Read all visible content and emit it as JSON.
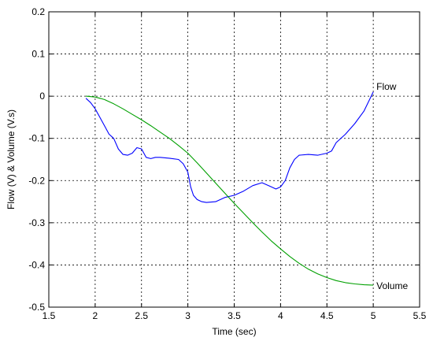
{
  "chart_data": {
    "type": "line",
    "xlabel": "Time (sec)",
    "ylabel": "Flow (V) & Volume (V.s)",
    "xlim": [
      1.5,
      5.5
    ],
    "ylim": [
      -0.5,
      0.2
    ],
    "xticks": [
      1.5,
      2,
      2.5,
      3,
      3.5,
      4,
      4.5,
      5,
      5.5
    ],
    "xtick_labels": [
      "1.5",
      "2",
      "2.5",
      "3",
      "3.5",
      "4",
      "4.5",
      "5",
      "5.5"
    ],
    "yticks": [
      -0.5,
      -0.4,
      -0.3,
      -0.2,
      -0.1,
      0,
      0.1,
      0.2
    ],
    "ytick_labels": [
      "-0.5",
      "-0.4",
      "-0.3",
      "-0.2",
      "-0.1",
      "0",
      "0.1",
      "0.2"
    ],
    "grid": true,
    "series": [
      {
        "name": "Flow",
        "color": "#0000ff",
        "x": [
          1.9,
          1.95,
          2.0,
          2.05,
          2.1,
          2.15,
          2.2,
          2.25,
          2.3,
          2.35,
          2.4,
          2.45,
          2.5,
          2.55,
          2.6,
          2.65,
          2.7,
          2.8,
          2.9,
          2.95,
          3.0,
          3.03,
          3.06,
          3.1,
          3.15,
          3.2,
          3.3,
          3.4,
          3.5,
          3.6,
          3.7,
          3.8,
          3.85,
          3.9,
          3.95,
          4.0,
          4.05,
          4.1,
          4.15,
          4.2,
          4.3,
          4.4,
          4.5,
          4.55,
          4.6,
          4.7,
          4.8,
          4.9,
          5.0
        ],
        "y": [
          -0.005,
          -0.015,
          -0.03,
          -0.05,
          -0.07,
          -0.09,
          -0.1,
          -0.125,
          -0.138,
          -0.14,
          -0.135,
          -0.122,
          -0.125,
          -0.145,
          -0.148,
          -0.145,
          -0.145,
          -0.147,
          -0.15,
          -0.16,
          -0.18,
          -0.215,
          -0.235,
          -0.245,
          -0.25,
          -0.252,
          -0.25,
          -0.24,
          -0.235,
          -0.225,
          -0.212,
          -0.205,
          -0.21,
          -0.215,
          -0.22,
          -0.215,
          -0.2,
          -0.17,
          -0.15,
          -0.14,
          -0.138,
          -0.14,
          -0.135,
          -0.13,
          -0.11,
          -0.09,
          -0.065,
          -0.035,
          0.01
        ]
      },
      {
        "name": "Volume",
        "color": "#00a000",
        "x": [
          1.9,
          2.0,
          2.1,
          2.2,
          2.3,
          2.4,
          2.5,
          2.6,
          2.7,
          2.8,
          2.9,
          3.0,
          3.1,
          3.2,
          3.3,
          3.4,
          3.5,
          3.6,
          3.7,
          3.8,
          3.9,
          4.0,
          4.1,
          4.2,
          4.3,
          4.4,
          4.5,
          4.6,
          4.7,
          4.8,
          4.9,
          5.0
        ],
        "y": [
          0.0,
          -0.002,
          -0.008,
          -0.018,
          -0.03,
          -0.043,
          -0.056,
          -0.07,
          -0.085,
          -0.1,
          -0.117,
          -0.135,
          -0.158,
          -0.182,
          -0.206,
          -0.23,
          -0.254,
          -0.277,
          -0.3,
          -0.322,
          -0.343,
          -0.362,
          -0.38,
          -0.396,
          -0.41,
          -0.421,
          -0.43,
          -0.437,
          -0.442,
          -0.445,
          -0.447,
          -0.448
        ]
      }
    ]
  }
}
